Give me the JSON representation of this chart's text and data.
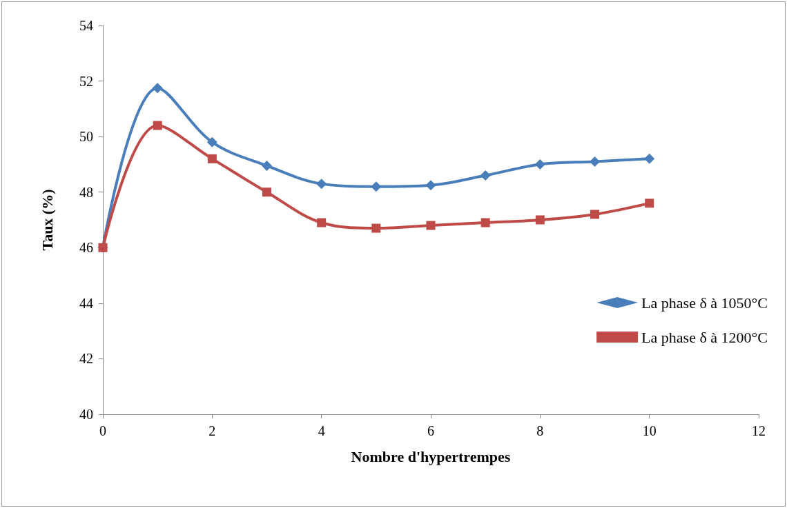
{
  "chart_data": {
    "type": "line",
    "xlabel": "Nombre d'hypertrempes",
    "ylabel": "Taux (%)",
    "x": [
      0,
      1,
      2,
      3,
      4,
      5,
      6,
      7,
      8,
      9,
      10
    ],
    "series": [
      {
        "name": "La phase δ à 1050°C",
        "color": "#4a7ebb",
        "marker": "diamond",
        "values": [
          46,
          51.75,
          49.8,
          48.95,
          48.3,
          48.2,
          48.25,
          48.6,
          49.0,
          49.1,
          49.2
        ]
      },
      {
        "name": "La phase δ à 1200°C",
        "color": "#be4b48",
        "marker": "square",
        "values": [
          46,
          50.4,
          49.2,
          48.0,
          46.9,
          46.7,
          46.8,
          46.9,
          47.0,
          47.2,
          47.6
        ]
      }
    ],
    "xlim": [
      0,
      12
    ],
    "xticks": [
      0,
      2,
      4,
      6,
      8,
      10,
      12
    ],
    "ylim": [
      40,
      54
    ],
    "yticks": [
      40,
      42,
      44,
      46,
      48,
      50,
      52,
      54
    ],
    "grid": false,
    "legend": "right",
    "line_style": "solid"
  }
}
